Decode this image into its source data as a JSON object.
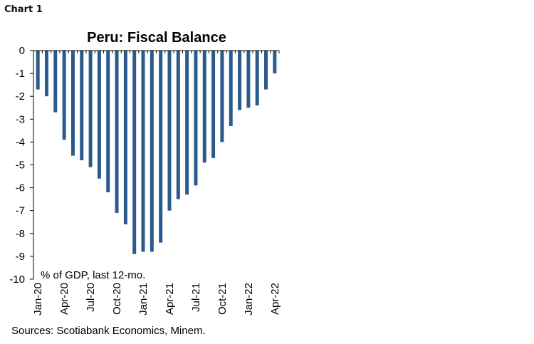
{
  "header": {
    "chart_label": "Chart 1"
  },
  "footer": {
    "sources": "Sources: Scotiabank Economics, Minem."
  },
  "colors": {
    "bar": "#2b5b8c",
    "axis": "#000000"
  },
  "chart_data": {
    "type": "bar",
    "title": "Peru: Fiscal Balance",
    "annotation": "% of GDP, last 12-mo.",
    "xlabel": "",
    "ylabel": "",
    "ylim": [
      -10,
      0
    ],
    "yticks": [
      0,
      -1,
      -2,
      -3,
      -4,
      -5,
      -6,
      -7,
      -8,
      -9,
      -10
    ],
    "x_tick_labels": [
      "Jan-20",
      "Apr-20",
      "Jul-20",
      "Oct-20",
      "Jan-21",
      "Apr-21",
      "Jul-21",
      "Oct-21",
      "Jan-22",
      "Apr-22"
    ],
    "x_tick_every": 3,
    "grid": false,
    "categories": [
      "Jan-20",
      "Feb-20",
      "Mar-20",
      "Apr-20",
      "May-20",
      "Jun-20",
      "Jul-20",
      "Aug-20",
      "Sep-20",
      "Oct-20",
      "Nov-20",
      "Dec-20",
      "Jan-21",
      "Feb-21",
      "Mar-21",
      "Apr-21",
      "May-21",
      "Jun-21",
      "Jul-21",
      "Aug-21",
      "Sep-21",
      "Oct-21",
      "Nov-21",
      "Dec-21",
      "Jan-22",
      "Feb-22",
      "Mar-22",
      "Apr-22"
    ],
    "values": [
      -1.7,
      -2.0,
      -2.7,
      -3.9,
      -4.6,
      -4.8,
      -5.1,
      -5.6,
      -6.2,
      -7.1,
      -7.6,
      -8.9,
      -8.8,
      -8.8,
      -8.4,
      -7.0,
      -6.5,
      -6.3,
      -5.9,
      -4.9,
      -4.7,
      -4.0,
      -3.3,
      -2.6,
      -2.5,
      -2.4,
      -1.7,
      -1.0
    ]
  }
}
